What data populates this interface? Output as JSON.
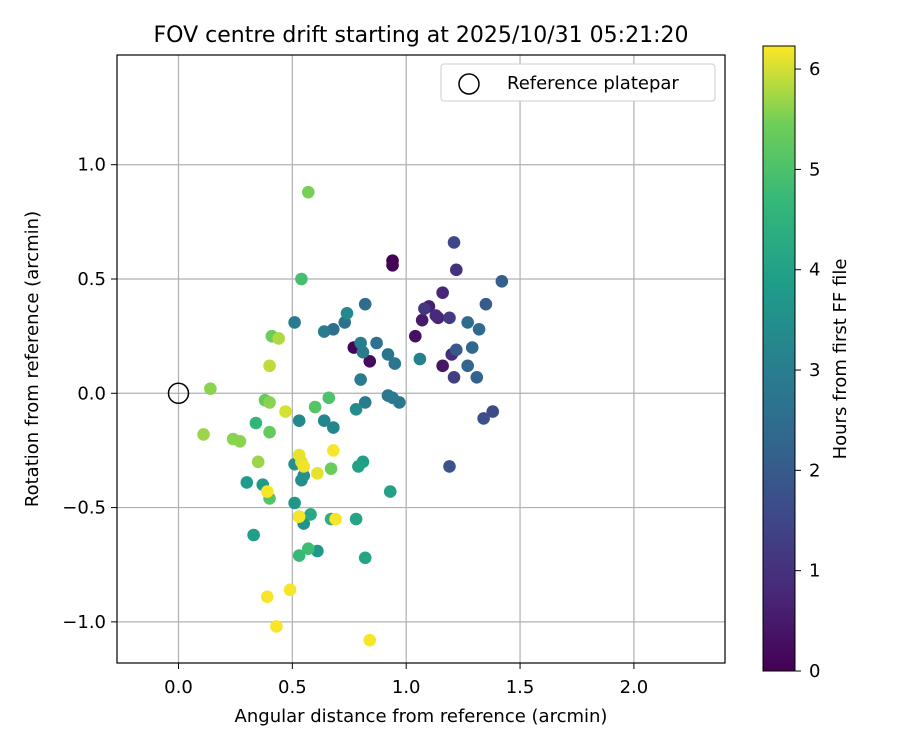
{
  "chart_data": {
    "type": "scatter",
    "title": "FOV centre drift starting at 2025/10/31 05:21:20",
    "xlabel": "Angular distance from reference (arcmin)",
    "ylabel": "Rotation from reference (arcmin)",
    "xlim": [
      -0.27,
      2.4
    ],
    "ylim": [
      -1.18,
      1.48
    ],
    "xticks": [
      0.0,
      0.5,
      1.0,
      1.5,
      2.0
    ],
    "xtick_labels": [
      "0.0",
      "0.5",
      "1.0",
      "1.5",
      "2.0"
    ],
    "yticks": [
      -1.0,
      -0.5,
      0.0,
      0.5,
      1.0
    ],
    "ytick_labels": [
      "−1.0",
      "−0.5",
      "0.0",
      "0.5",
      "1.0"
    ],
    "grid": true,
    "legend": {
      "position": "top-right",
      "label": "Reference platepar"
    },
    "reference_point": {
      "x": 0.0,
      "y": 0.0
    },
    "colorbar": {
      "label": "Hours from first FF file",
      "range": [
        0,
        6.23
      ],
      "ticks": [
        0,
        1,
        2,
        3,
        4,
        5,
        6
      ],
      "tick_labels": [
        "0",
        "1",
        "2",
        "3",
        "4",
        "5",
        "6"
      ],
      "colormap": "viridis"
    },
    "points": [
      {
        "x": 0.94,
        "y": 0.58,
        "h": 0.0
      },
      {
        "x": 0.94,
        "y": 0.56,
        "h": 0.05
      },
      {
        "x": 0.77,
        "y": 0.2,
        "h": 0.1
      },
      {
        "x": 0.84,
        "y": 0.14,
        "h": 0.2
      },
      {
        "x": 1.04,
        "y": 0.25,
        "h": 0.3
      },
      {
        "x": 1.16,
        "y": 0.12,
        "h": 0.4
      },
      {
        "x": 1.07,
        "y": 0.32,
        "h": 0.5
      },
      {
        "x": 1.1,
        "y": 0.38,
        "h": 0.6
      },
      {
        "x": 1.14,
        "y": 0.33,
        "h": 0.7
      },
      {
        "x": 1.16,
        "y": 0.44,
        "h": 0.8
      },
      {
        "x": 1.13,
        "y": 0.34,
        "h": 0.85
      },
      {
        "x": 1.2,
        "y": 0.17,
        "h": 0.9
      },
      {
        "x": 1.22,
        "y": 0.54,
        "h": 1.0
      },
      {
        "x": 1.08,
        "y": 0.37,
        "h": 1.1
      },
      {
        "x": 1.19,
        "y": 0.33,
        "h": 1.2
      },
      {
        "x": 1.21,
        "y": 0.07,
        "h": 1.3
      },
      {
        "x": 1.21,
        "y": 0.66,
        "h": 1.5
      },
      {
        "x": 1.38,
        "y": -0.08,
        "h": 1.6
      },
      {
        "x": 1.34,
        "y": -0.11,
        "h": 1.7
      },
      {
        "x": 1.19,
        "y": -0.32,
        "h": 1.8
      },
      {
        "x": 1.22,
        "y": 0.19,
        "h": 1.9
      },
      {
        "x": 1.35,
        "y": 0.39,
        "h": 2.0
      },
      {
        "x": 1.42,
        "y": 0.49,
        "h": 2.1
      },
      {
        "x": 1.31,
        "y": 0.07,
        "h": 2.2
      },
      {
        "x": 1.27,
        "y": 0.12,
        "h": 2.3
      },
      {
        "x": 1.29,
        "y": 0.2,
        "h": 2.35
      },
      {
        "x": 1.32,
        "y": 0.28,
        "h": 2.4
      },
      {
        "x": 1.27,
        "y": 0.31,
        "h": 2.5
      },
      {
        "x": 0.82,
        "y": 0.39,
        "h": 2.45
      },
      {
        "x": 0.68,
        "y": 0.28,
        "h": 2.55
      },
      {
        "x": 0.73,
        "y": 0.31,
        "h": 2.6
      },
      {
        "x": 0.87,
        "y": 0.22,
        "h": 2.65
      },
      {
        "x": 0.92,
        "y": 0.17,
        "h": 2.7
      },
      {
        "x": 0.95,
        "y": 0.13,
        "h": 2.75
      },
      {
        "x": 0.97,
        "y": -0.04,
        "h": 2.8
      },
      {
        "x": 0.92,
        "y": -0.01,
        "h": 2.8
      },
      {
        "x": 0.94,
        "y": -0.02,
        "h": 2.85
      },
      {
        "x": 0.82,
        "y": -0.04,
        "h": 2.9
      },
      {
        "x": 0.8,
        "y": 0.06,
        "h": 2.9
      },
      {
        "x": 0.81,
        "y": 0.18,
        "h": 2.95
      },
      {
        "x": 0.8,
        "y": 0.22,
        "h": 3.0
      },
      {
        "x": 0.64,
        "y": 0.27,
        "h": 2.9
      },
      {
        "x": 0.51,
        "y": 0.31,
        "h": 2.9
      },
      {
        "x": 1.06,
        "y": 0.15,
        "h": 3.1
      },
      {
        "x": 0.68,
        "y": -0.15,
        "h": 3.2
      },
      {
        "x": 0.64,
        "y": -0.12,
        "h": 3.2
      },
      {
        "x": 0.53,
        "y": -0.12,
        "h": 3.3
      },
      {
        "x": 0.74,
        "y": 0.35,
        "h": 3.3
      },
      {
        "x": 0.78,
        "y": -0.07,
        "h": 3.4
      },
      {
        "x": 0.54,
        "y": -0.38,
        "h": 3.4
      },
      {
        "x": 0.55,
        "y": -0.36,
        "h": 3.5
      },
      {
        "x": 0.51,
        "y": -0.31,
        "h": 3.5
      },
      {
        "x": 0.55,
        "y": -0.57,
        "h": 3.6
      },
      {
        "x": 0.53,
        "y": -0.54,
        "h": 3.6
      },
      {
        "x": 0.51,
        "y": -0.48,
        "h": 3.7
      },
      {
        "x": 0.61,
        "y": -0.69,
        "h": 3.7
      },
      {
        "x": 0.37,
        "y": -0.4,
        "h": 3.8
      },
      {
        "x": 0.3,
        "y": -0.39,
        "h": 3.8
      },
      {
        "x": 0.33,
        "y": -0.62,
        "h": 3.9
      },
      {
        "x": 0.81,
        "y": -0.3,
        "h": 3.9
      },
      {
        "x": 0.79,
        "y": -0.32,
        "h": 4.0
      },
      {
        "x": 0.93,
        "y": -0.43,
        "h": 4.0
      },
      {
        "x": 0.78,
        "y": -0.55,
        "h": 4.1
      },
      {
        "x": 0.82,
        "y": -0.72,
        "h": 4.1
      },
      {
        "x": 0.58,
        "y": -0.53,
        "h": 4.2
      },
      {
        "x": 0.67,
        "y": -0.55,
        "h": 4.4
      },
      {
        "x": 0.34,
        "y": -0.13,
        "h": 4.6
      },
      {
        "x": 0.53,
        "y": -0.71,
        "h": 4.7
      },
      {
        "x": 0.57,
        "y": -0.68,
        "h": 4.8
      },
      {
        "x": 0.54,
        "y": 0.5,
        "h": 4.9
      },
      {
        "x": 0.66,
        "y": -0.02,
        "h": 5.0
      },
      {
        "x": 0.6,
        "y": -0.06,
        "h": 5.1
      },
      {
        "x": 0.4,
        "y": -0.46,
        "h": 5.1
      },
      {
        "x": 0.4,
        "y": -0.17,
        "h": 5.3
      },
      {
        "x": 0.38,
        "y": -0.03,
        "h": 5.3
      },
      {
        "x": 0.67,
        "y": -0.33,
        "h": 5.4
      },
      {
        "x": 0.41,
        "y": 0.25,
        "h": 5.4
      },
      {
        "x": 0.57,
        "y": 0.88,
        "h": 5.5
      },
      {
        "x": 0.4,
        "y": -0.04,
        "h": 5.6
      },
      {
        "x": 0.14,
        "y": 0.02,
        "h": 5.6
      },
      {
        "x": 0.24,
        "y": -0.2,
        "h": 5.6
      },
      {
        "x": 0.27,
        "y": -0.21,
        "h": 5.6
      },
      {
        "x": 0.35,
        "y": -0.3,
        "h": 5.7
      },
      {
        "x": 0.11,
        "y": -0.18,
        "h": 5.7
      },
      {
        "x": 0.44,
        "y": 0.24,
        "h": 5.8
      },
      {
        "x": 0.4,
        "y": 0.12,
        "h": 5.9
      },
      {
        "x": 0.47,
        "y": -0.08,
        "h": 6.0
      },
      {
        "x": 0.53,
        "y": -0.27,
        "h": 6.1
      },
      {
        "x": 0.54,
        "y": -0.3,
        "h": 6.1
      },
      {
        "x": 0.55,
        "y": -0.32,
        "h": 6.15
      },
      {
        "x": 0.61,
        "y": -0.35,
        "h": 6.1
      },
      {
        "x": 0.68,
        "y": -0.25,
        "h": 6.2
      },
      {
        "x": 0.39,
        "y": -0.43,
        "h": 6.2
      },
      {
        "x": 0.53,
        "y": -0.54,
        "h": 6.2
      },
      {
        "x": 0.69,
        "y": -0.55,
        "h": 6.2
      },
      {
        "x": 0.49,
        "y": -0.86,
        "h": 6.2
      },
      {
        "x": 0.39,
        "y": -0.89,
        "h": 6.2
      },
      {
        "x": 0.43,
        "y": -1.02,
        "h": 6.2
      },
      {
        "x": 0.84,
        "y": -1.08,
        "h": 6.2
      }
    ]
  }
}
